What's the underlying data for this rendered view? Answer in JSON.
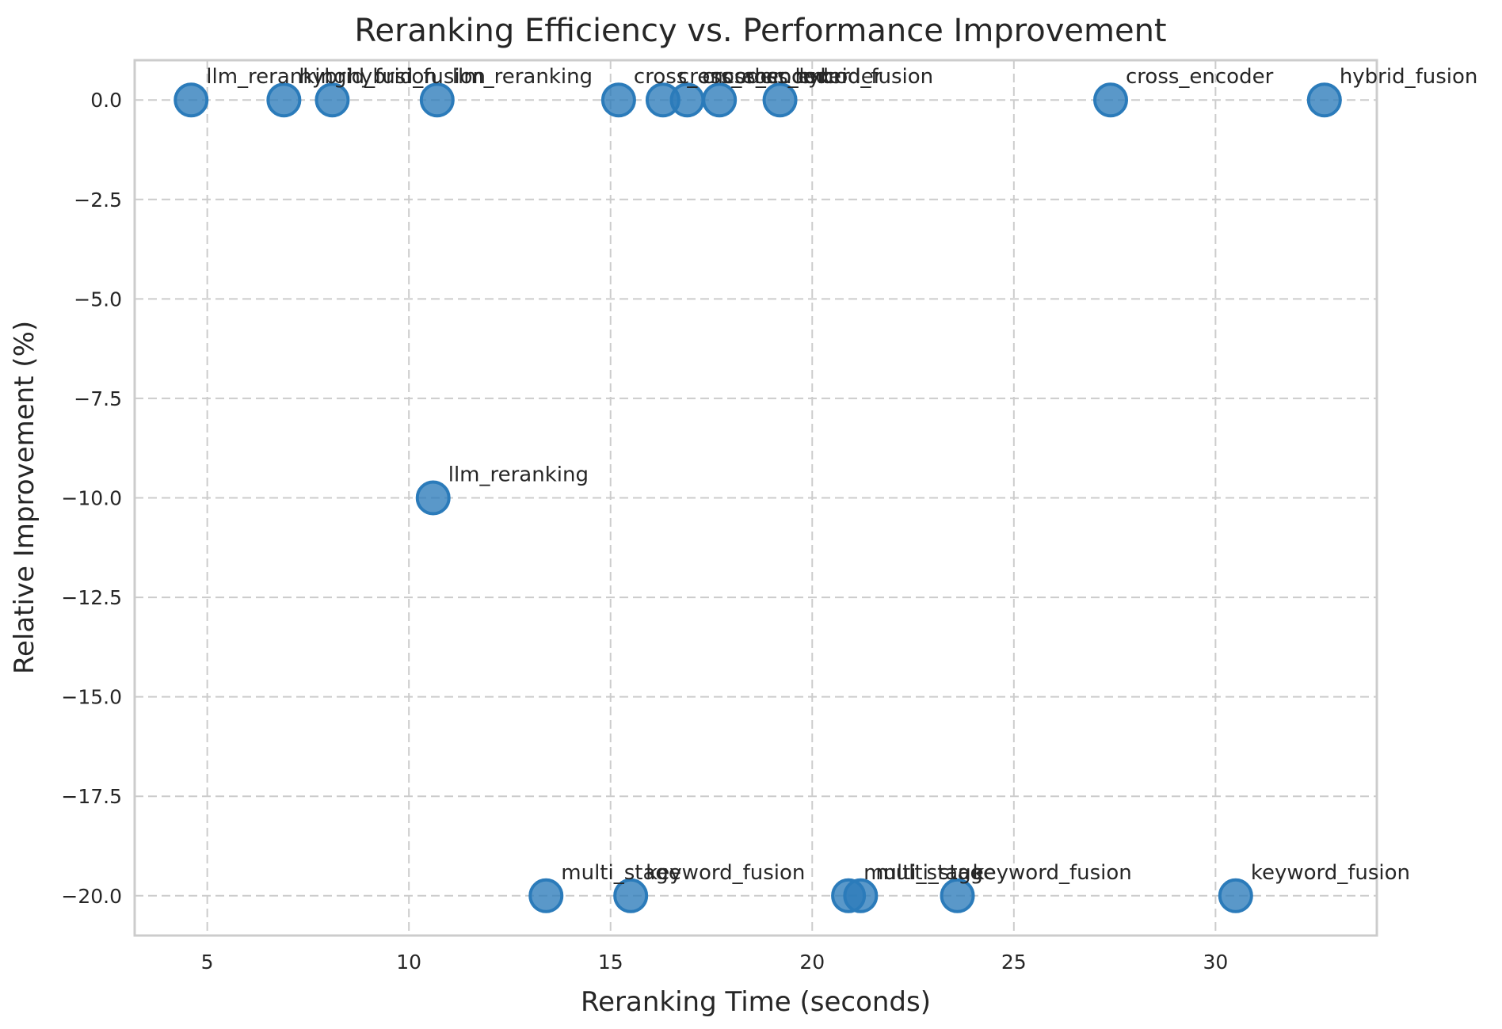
{
  "chart_data": {
    "type": "scatter",
    "title": "Reranking Efficiency vs. Performance Improvement",
    "xlabel": "Reranking Time (seconds)",
    "ylabel": "Relative Improvement (%)",
    "xlim": [
      3.2,
      34.0
    ],
    "ylim": [
      -21.0,
      1.0
    ],
    "xticks": [
      5,
      10,
      15,
      20,
      25,
      30
    ],
    "xtick_labels": [
      "5",
      "10",
      "15",
      "20",
      "25",
      "30"
    ],
    "yticks": [
      0.0,
      -2.5,
      -5.0,
      -7.5,
      -10.0,
      -12.5,
      -15.0,
      -17.5,
      -20.0
    ],
    "ytick_labels": [
      "0.0",
      "−2.5",
      "−5.0",
      "−7.5",
      "−10.0",
      "−12.5",
      "−15.0",
      "−17.5",
      "−20.0"
    ],
    "grid": true,
    "marker_color": "#2b7bba",
    "points": [
      {
        "x": 4.6,
        "y": 0.0,
        "label": "llm_reranking"
      },
      {
        "x": 6.9,
        "y": 0.0,
        "label": "hybrid_fusion"
      },
      {
        "x": 8.1,
        "y": 0.0,
        "label": "hybrid_fusion"
      },
      {
        "x": 10.7,
        "y": 0.0,
        "label": "llm_reranking"
      },
      {
        "x": 15.2,
        "y": 0.0,
        "label": "cross_encoder"
      },
      {
        "x": 16.3,
        "y": 0.0,
        "label": "cross_encoder"
      },
      {
        "x": 16.9,
        "y": 0.0,
        "label": "cross_encoder"
      },
      {
        "x": 17.7,
        "y": 0.0,
        "label": "cross_encoder"
      },
      {
        "x": 19.2,
        "y": 0.0,
        "label": "hybrid_fusion"
      },
      {
        "x": 27.4,
        "y": 0.0,
        "label": "cross_encoder"
      },
      {
        "x": 32.7,
        "y": 0.0,
        "label": "hybrid_fusion"
      },
      {
        "x": 10.6,
        "y": -10.0,
        "label": "llm_reranking"
      },
      {
        "x": 13.4,
        "y": -20.0,
        "label": "multi_stage"
      },
      {
        "x": 15.5,
        "y": -20.0,
        "label": "keyword_fusion"
      },
      {
        "x": 20.9,
        "y": -20.0,
        "label": "multi_stage"
      },
      {
        "x": 21.2,
        "y": -20.0,
        "label": "multi_stage"
      },
      {
        "x": 23.6,
        "y": -20.0,
        "label": "keyword_fusion"
      },
      {
        "x": 30.5,
        "y": -20.0,
        "label": "keyword_fusion"
      }
    ]
  }
}
